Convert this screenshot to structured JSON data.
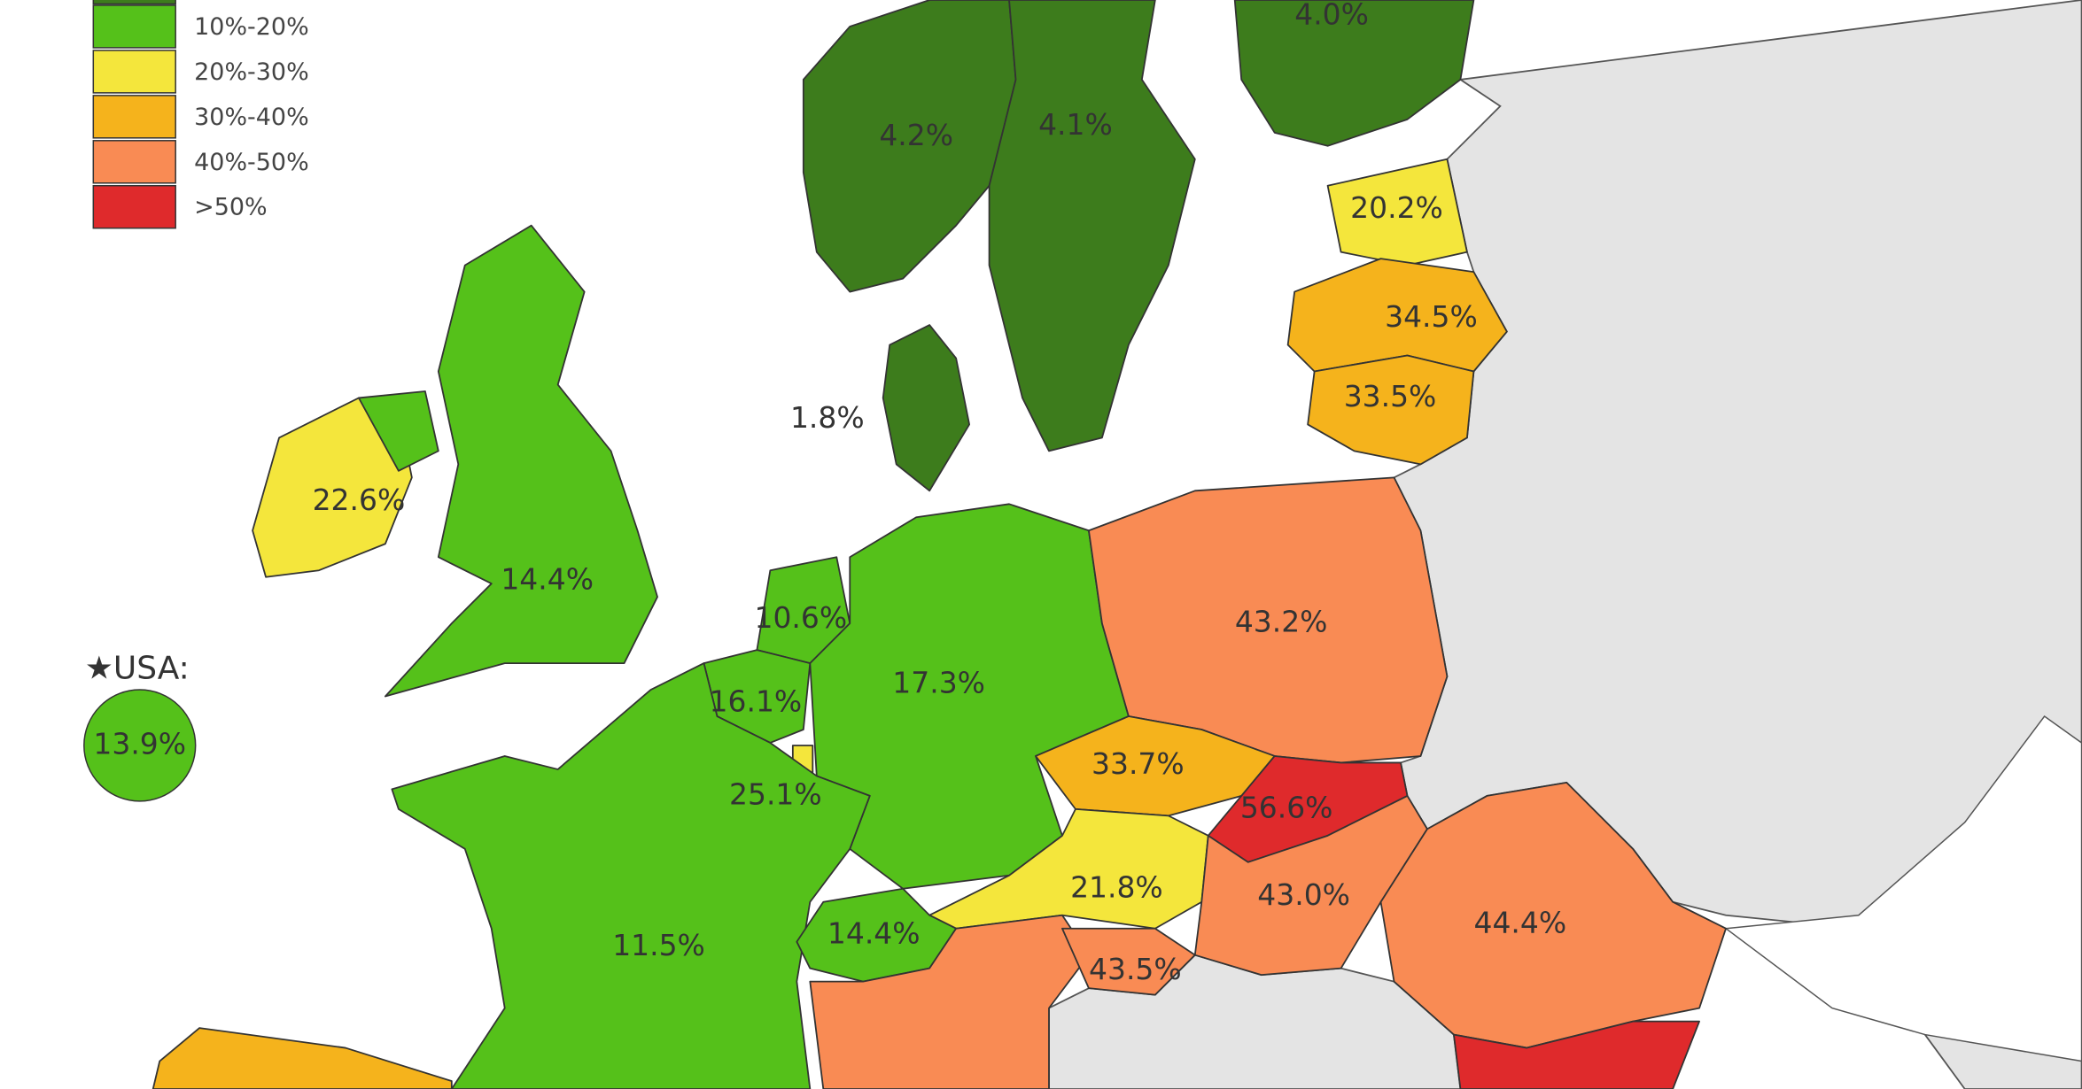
{
  "legend": [
    {
      "label": "10%-20%",
      "color": "#55c11a"
    },
    {
      "label": "20%-30%",
      "color": "#f4e63c"
    },
    {
      "label": "30%-40%",
      "color": "#f5b31c"
    },
    {
      "label": "40%-50%",
      "color": "#f98b54"
    },
    {
      "label": ">50%",
      "color": "#df2a2c"
    }
  ],
  "usa": {
    "label": "★USA:",
    "value": "13.9%"
  },
  "regions": [
    {
      "label": "4.0%"
    },
    {
      "label": "4.2%"
    },
    {
      "label": "4.1%"
    },
    {
      "label": "20.2%"
    },
    {
      "label": "34.5%"
    },
    {
      "label": "33.5%"
    },
    {
      "label": "1.8%"
    },
    {
      "label": "22.6%"
    },
    {
      "label": "14.4%"
    },
    {
      "label": "10.6%"
    },
    {
      "label": "17.3%"
    },
    {
      "label": "43.2%"
    },
    {
      "label": "16.1%"
    },
    {
      "label": "25.1%"
    },
    {
      "label": "33.7%"
    },
    {
      "label": "56.6%"
    },
    {
      "label": "21.8%"
    },
    {
      "label": "43.0%"
    },
    {
      "label": "44.4%"
    },
    {
      "label": "11.5%"
    },
    {
      "label": "14.4%"
    },
    {
      "label": "43.5%"
    }
  ]
}
